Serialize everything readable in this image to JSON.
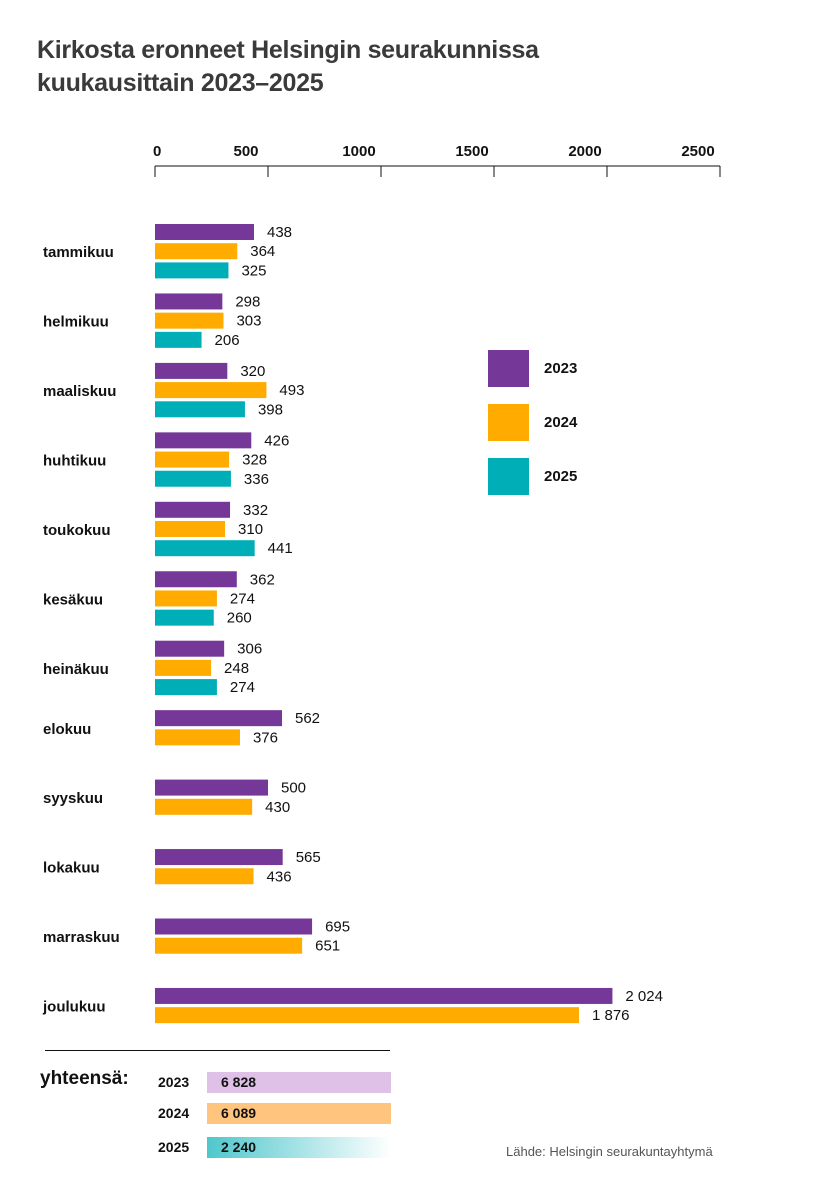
{
  "title": {
    "line1": "Kirkosta eronneet Helsingin seurakunnissa",
    "line2": "kuukausittain 2023–2025"
  },
  "chart_data": {
    "type": "bar",
    "orientation": "horizontal",
    "categories": [
      "tammikuu",
      "helmikuu",
      "maaliskuu",
      "huhtikuu",
      "toukokuu",
      "kesäkuu",
      "heinäkuu",
      "elokuu",
      "syyskuu",
      "lokakuu",
      "marraskuu",
      "joulukuu"
    ],
    "series": [
      {
        "name": "2023",
        "color": "#763898",
        "values": [
          438,
          298,
          320,
          426,
          332,
          362,
          306,
          562,
          500,
          565,
          695,
          2024
        ],
        "labels": [
          "438",
          "298",
          "320",
          "426",
          "332",
          "362",
          "306",
          "562",
          "500",
          "565",
          "695",
          "2 024"
        ]
      },
      {
        "name": "2024",
        "color": "#ffab00",
        "values": [
          364,
          303,
          493,
          328,
          310,
          274,
          248,
          376,
          430,
          436,
          651,
          1876
        ],
        "labels": [
          "364",
          "303",
          "493",
          "328",
          "310",
          "274",
          "248",
          "376",
          "430",
          "436",
          "651",
          "1 876"
        ]
      },
      {
        "name": "2025",
        "color": "#00aeb7",
        "values": [
          325,
          206,
          398,
          336,
          441,
          260,
          274,
          null,
          null,
          null,
          null,
          null
        ],
        "labels": [
          "325",
          "206",
          "398",
          "336",
          "441",
          "260",
          "274",
          "",
          "",
          "",
          "",
          ""
        ]
      }
    ],
    "xlim": [
      0,
      2500
    ],
    "xticks": [
      "0",
      "500",
      "1000",
      "1500",
      "2000",
      "2500"
    ],
    "axis_position": "top",
    "grid": false,
    "legend_position": "right",
    "legend": [
      "2023",
      "2024",
      "2025"
    ]
  },
  "totals": {
    "title": "yhteensä:",
    "rows": [
      {
        "year": "2023",
        "value": "6 828",
        "color": "#dfc0e6"
      },
      {
        "year": "2024",
        "value": "6 089",
        "color": "#ffc57f"
      },
      {
        "year": "2025",
        "value": "2 240",
        "color": "#4fc7cc"
      }
    ]
  },
  "source": "Lähde: Helsingin seurakuntayhtymä"
}
